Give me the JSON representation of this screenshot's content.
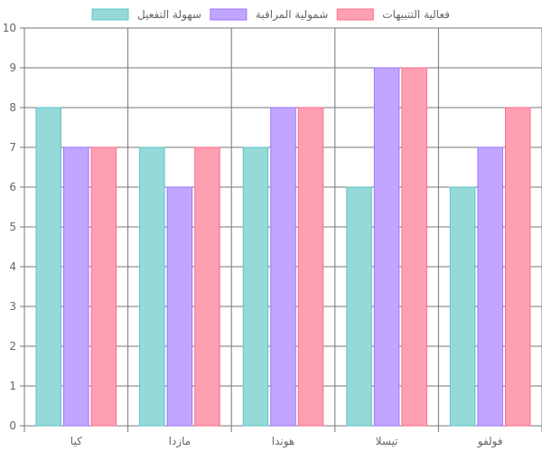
{
  "chart_data": {
    "type": "bar",
    "title": "",
    "xlabel": "",
    "ylabel": "",
    "ylim": [
      0,
      10
    ],
    "y_ticks": [
      0,
      1,
      2,
      3,
      4,
      5,
      6,
      7,
      8,
      9,
      10
    ],
    "grid": true,
    "legend_position": "top",
    "categories": [
      "كيا",
      "مازدا",
      "هوندا",
      "تيسلا",
      "فولفو"
    ],
    "series": [
      {
        "name": "سهولة التفعيل",
        "values": [
          8,
          7,
          7,
          6,
          6
        ],
        "fill": "#95d9d9",
        "stroke": "#5ec6c6"
      },
      {
        "name": "شمولية المراقبة",
        "values": [
          7,
          6,
          8,
          9,
          7
        ],
        "fill": "#c1a6ff",
        "stroke": "#9d73ff"
      },
      {
        "name": "فعالية التنبيهات",
        "values": [
          7,
          7,
          8,
          9,
          8
        ],
        "fill": "#ff9fb2",
        "stroke": "#ff6d8e"
      }
    ]
  }
}
